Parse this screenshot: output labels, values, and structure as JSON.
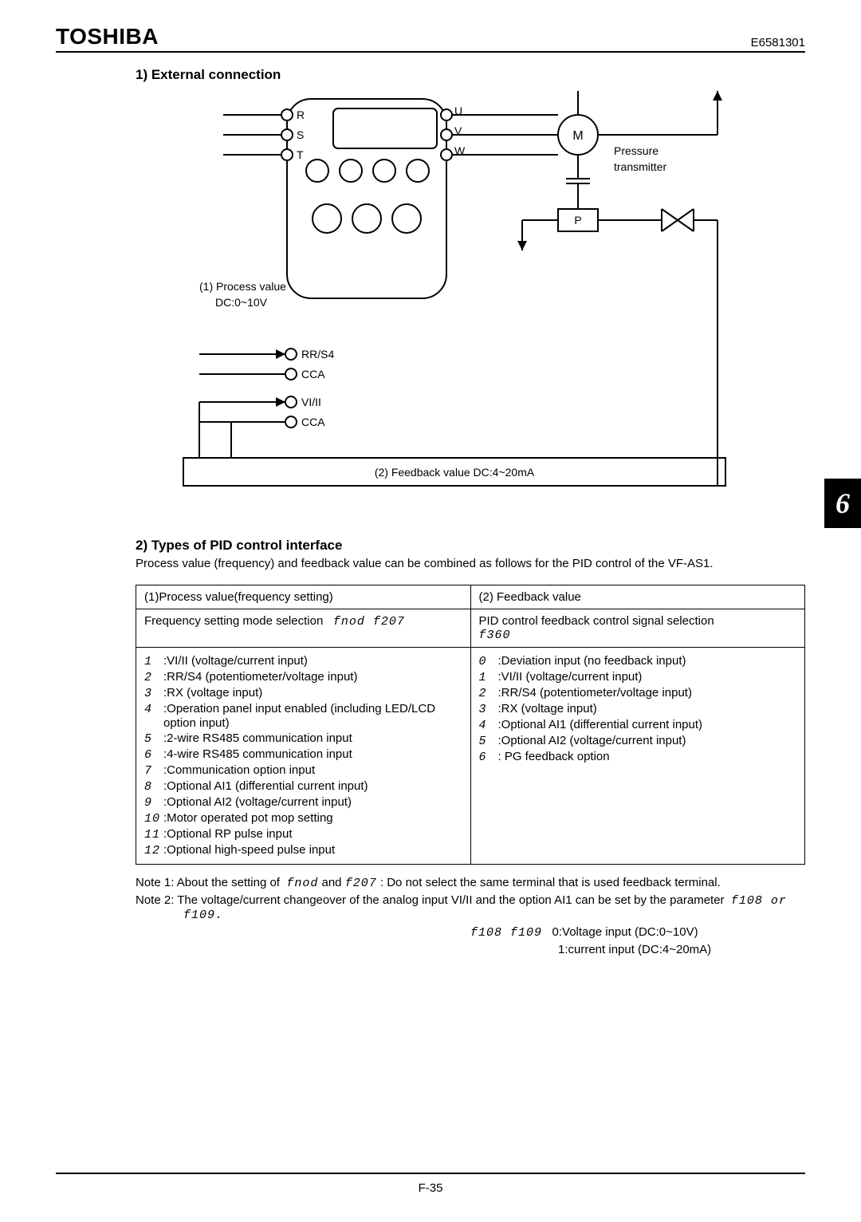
{
  "header": {
    "brand": "TOSHIBA",
    "doc_id": "E6581301"
  },
  "section1": {
    "title": "1) External connection",
    "diagram": {
      "stroke": "#000000",
      "fill_bg": "#ffffff",
      "terminals_left": [
        "R",
        "S",
        "T"
      ],
      "terminals_right": [
        "U",
        "V",
        "W"
      ],
      "motor_label": "M",
      "pressure_label1": "Pressure",
      "pressure_label2": "transmitter",
      "pressure_block_label": "P",
      "process_value_line1": "(1) Process value",
      "process_value_line2": "DC:0~10V",
      "bottom_terminals": [
        "RR/S4",
        "CCA",
        "VI/II",
        "CCA"
      ],
      "feedback_caption": "(2) Feedback value DC:4~20mA"
    }
  },
  "section2": {
    "title": "2) Types of PID control interface",
    "desc": "Process value (frequency) and feedback value can be combined as follows for the PID control of the VF-AS1.",
    "table": {
      "col1_header": "(1)Process value(frequency setting)",
      "col2_header": "(2) Feedback value",
      "col1_sub_prefix": "Frequency setting mode selection",
      "col1_sub_codes": "fnod   f207",
      "col2_sub_line1": "PID control feedback control signal selection",
      "col2_sub_code": "f360",
      "col1_options": [
        {
          "n": "1",
          "t": ":VI/II (voltage/current input)"
        },
        {
          "n": "2",
          "t": ":RR/S4 (potentiometer/voltage input)"
        },
        {
          "n": "3",
          "t": ":RX (voltage input)"
        },
        {
          "n": "4",
          "t": ":Operation panel input enabled (including LED/LCD option input)"
        },
        {
          "n": "5",
          "t": ":2-wire RS485 communication input"
        },
        {
          "n": "6",
          "t": ":4-wire RS485 communication input"
        },
        {
          "n": "7",
          "t": ":Communication option input"
        },
        {
          "n": "8",
          "t": ":Optional AI1 (differential current input)"
        },
        {
          "n": "9",
          "t": ":Optional AI2 (voltage/current input)"
        },
        {
          "n": "10",
          "t": ":Motor operated pot mop setting"
        },
        {
          "n": "11",
          "t": ":Optional RP pulse input"
        },
        {
          "n": "12",
          "t": ":Optional high-speed pulse input"
        }
      ],
      "col2_options": [
        {
          "n": "0",
          "t": ":Deviation input (no feedback input)"
        },
        {
          "n": "1",
          "t": ":VI/II (voltage/current input)"
        },
        {
          "n": "2",
          "t": ":RR/S4 (potentiometer/voltage input)"
        },
        {
          "n": "3",
          "t": ":RX (voltage input)"
        },
        {
          "n": "4",
          "t": ":Optional AI1 (differential current input)"
        },
        {
          "n": "5",
          "t": ":Optional AI2 (voltage/current input)"
        },
        {
          "n": "6",
          "t": ": PG feedback option"
        }
      ]
    },
    "note1_prefix": "Note 1:  About the setting of",
    "note1_code1": "fnod",
    "note1_mid": " and ",
    "note1_code2": "f207",
    "note1_suffix": ": Do not select the same terminal that is used feedback terminal.",
    "note2_prefix": "Note 2:  The voltage/current changeover of the analog input VI/II and the option AI1 can be set by the parameter",
    "note2_codes": "f108 or f109.",
    "note2_sub_codes": "f108   f109",
    "note2_sub_line1": "0:Voltage input (DC:0~10V)",
    "note2_sub_line2": "1:current input (DC:4~20mA)"
  },
  "chapter_tab": "6",
  "page_number": "F-35"
}
